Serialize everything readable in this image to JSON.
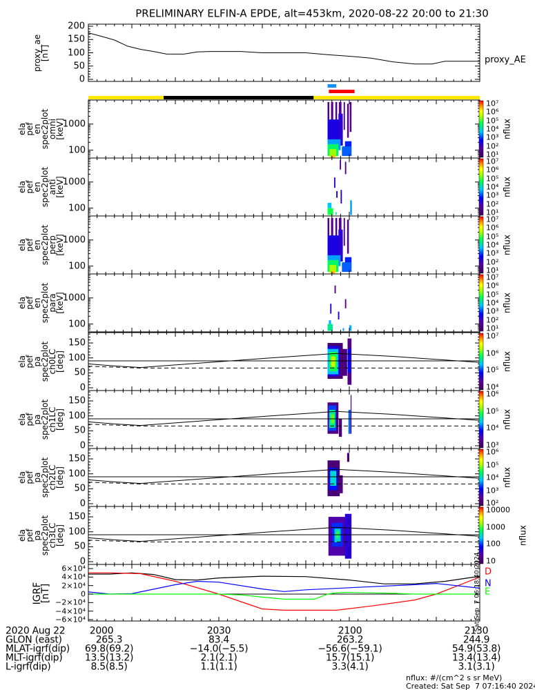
{
  "title": "PRELIMINARY ELFIN-A EPDE, alt=453km, 2020-08-22 20:00 to 21:30",
  "chart_data": {
    "type": "line",
    "time_range_min": [
      0,
      90
    ],
    "time_origin": "2020-08-22 20:00",
    "proxy_ae": {
      "ylabel": "proxy_ae\n[nT]",
      "legend": "proxy_AE",
      "ylim": [
        0,
        200
      ],
      "yticks": [
        "200",
        "150",
        "100",
        "50",
        "0"
      ],
      "ytick_values": [
        200,
        150,
        100,
        50,
        0
      ],
      "t": [
        0,
        3,
        6,
        9,
        12,
        15,
        18,
        22,
        25,
        28,
        35,
        40,
        50,
        55,
        60,
        65,
        70,
        75,
        79,
        82,
        90
      ],
      "values": [
        175,
        162,
        148,
        125,
        113,
        105,
        95,
        95,
        103,
        105,
        105,
        100,
        100,
        93,
        87,
        80,
        66,
        58,
        58,
        68,
        68
      ]
    },
    "indicator_bars": {
      "blue": [
        55.0,
        57.0
      ],
      "red": [
        55.3,
        61.2
      ],
      "sunlight": [
        {
          "t": [
            0,
            17.3
          ],
          "color": "#ffe800"
        },
        {
          "t": [
            17.3,
            51.8
          ],
          "color": "#000000"
        },
        {
          "t": [
            51.8,
            90
          ],
          "color": "#ffe800"
        }
      ]
    },
    "panels": [
      {
        "kind": "energy",
        "ylabel": "ela\npef\nen\nspec2plot\nomni\n[keV]",
        "yticks": [
          {
            "v": 1000,
            "label": "1000"
          },
          {
            "v": 100,
            "label": "100"
          }
        ],
        "cbar": {
          "range": [
            0.8,
            7
          ],
          "label": "nflux",
          "ticks": [
            "10⁷",
            "10⁶",
            "10⁵",
            "10⁴",
            "10³",
            "10²",
            "10¹"
          ]
        },
        "blobs": [
          [
            55,
            55.4,
            300,
            7000,
            1.4
          ],
          [
            55.8,
            56.3,
            200,
            7000,
            1.5
          ],
          [
            56.8,
            57.2,
            500,
            7000,
            1.4
          ],
          [
            57.6,
            58.2,
            300,
            7000,
            1.6
          ],
          [
            58.7,
            59,
            600,
            7000,
            1.4
          ],
          [
            59.5,
            59.9,
            300,
            6000,
            1.5
          ],
          [
            60.1,
            60.5,
            500,
            7000,
            1.4
          ],
          [
            55,
            58.5,
            150,
            1500,
            2.4
          ],
          [
            57.5,
            58.5,
            150,
            2500,
            2.2
          ],
          [
            59,
            60.5,
            60,
            220,
            2.8
          ],
          [
            55,
            58,
            100,
            260,
            3.4
          ],
          [
            58.3,
            60.5,
            60,
            140,
            3.1
          ],
          [
            55,
            57.5,
            60,
            170,
            4.4
          ],
          [
            55.4,
            57,
            55,
            110,
            5.2
          ],
          [
            55.8,
            56.6,
            50,
            65,
            6.2
          ]
        ]
      },
      {
        "kind": "energy",
        "ylabel": "ela\npef\nen\nspec2plot\nanti\n[keV]",
        "yticks": [
          {
            "v": 1000,
            "label": "1000"
          },
          {
            "v": 100,
            "label": "100"
          }
        ],
        "cbar": {
          "range": [
            0.8,
            7
          ],
          "label": "nflux",
          "ticks": [
            "10⁷",
            "10⁶",
            "10⁵",
            "10⁴",
            "10³",
            "10²",
            "10¹"
          ]
        },
        "blobs": [
          [
            56.5,
            56.8,
            600,
            1500,
            2.2
          ],
          [
            58,
            58.3,
            150,
            500,
            2.2
          ],
          [
            59,
            59.3,
            2000,
            6000,
            1.5
          ],
          [
            57,
            57.3,
            250,
            450,
            2.5
          ],
          [
            57.8,
            58.1,
            3000,
            7000,
            1.6
          ],
          [
            55,
            55.9,
            100,
            160,
            3.6
          ],
          [
            55,
            56.3,
            55,
            100,
            4.6
          ],
          [
            60.2,
            60.6,
            55,
            200,
            3.4
          ],
          [
            56.8,
            57.1,
            55,
            70,
            4.2
          ]
        ]
      },
      {
        "kind": "energy",
        "ylabel": "ela\npef\nen\nspec2plot\nperp\n[keV]",
        "yticks": [
          {
            "v": 1000,
            "label": "1000"
          },
          {
            "v": 100,
            "label": "100"
          }
        ],
        "cbar": {
          "range": [
            0.8,
            7
          ],
          "label": "nflux",
          "ticks": [
            "10⁷",
            "10⁶",
            "10⁵",
            "10⁴",
            "10³",
            "10²",
            "10¹"
          ]
        },
        "blobs": [
          [
            55,
            55.4,
            300,
            7000,
            1.4
          ],
          [
            55.8,
            56.3,
            200,
            7000,
            1.5
          ],
          [
            56.8,
            57.2,
            500,
            7000,
            1.4
          ],
          [
            57.6,
            58.2,
            300,
            7000,
            1.6
          ],
          [
            58.7,
            59,
            600,
            7000,
            1.4
          ],
          [
            59.5,
            59.9,
            300,
            6000,
            1.5
          ],
          [
            55,
            58.5,
            150,
            1500,
            2.4
          ],
          [
            57.5,
            58.5,
            150,
            2500,
            2.2
          ],
          [
            59,
            60.5,
            60,
            220,
            2.8
          ],
          [
            55,
            58,
            100,
            260,
            3.4
          ],
          [
            58.3,
            60.5,
            60,
            140,
            3.1
          ],
          [
            55,
            57.5,
            60,
            170,
            4.4
          ],
          [
            55.4,
            57,
            55,
            110,
            5.3
          ],
          [
            55.8,
            56.6,
            50,
            65,
            6.3
          ]
        ]
      },
      {
        "kind": "energy",
        "ylabel": "ela\npef\nen\nspec2plot\npara\n[keV]",
        "yticks": [
          {
            "v": 1000,
            "label": "1000"
          },
          {
            "v": 100,
            "label": "100"
          }
        ],
        "cbar": {
          "range": [
            0.8,
            7
          ],
          "label": "nflux",
          "ticks": [
            "10⁷",
            "10⁶",
            "10⁵",
            "10⁴",
            "10³",
            "10²",
            "10¹"
          ]
        },
        "blobs": [
          [
            55,
            56.2,
            55,
            100,
            4.2
          ],
          [
            55.3,
            55.8,
            100,
            140,
            3.5
          ],
          [
            57.4,
            57.7,
            150,
            300,
            2.4
          ],
          [
            59,
            59.3,
            400,
            900,
            1.8
          ],
          [
            60,
            60.5,
            55,
            90,
            3.5
          ],
          [
            58.5,
            58.8,
            55,
            70,
            3.4
          ],
          [
            56.6,
            56.9,
            1500,
            3000,
            1.5
          ],
          [
            55.6,
            55.9,
            250,
            600,
            2.2
          ]
        ]
      },
      {
        "kind": "pa",
        "ylabel": "ela\npef\npa\nspec2plot\nch0LC\n[deg]",
        "yticks": [
          {
            "v": 150,
            "label": "150"
          },
          {
            "v": 100,
            "label": "100"
          },
          {
            "v": 50,
            "label": "50"
          },
          {
            "v": 0,
            "label": "0"
          }
        ],
        "cbar": {
          "range": [
            3.4,
            7
          ],
          "label": "nflux",
          "ticks": [
            "10⁷",
            "10⁶",
            "10⁵",
            "10⁴"
          ]
        },
        "blobs": [
          [
            55,
            58.5,
            30,
            150,
            3.6
          ],
          [
            57.8,
            59.5,
            40,
            130,
            3.7
          ],
          [
            59.6,
            60.5,
            10,
            165,
            3.8
          ],
          [
            55,
            57.8,
            38,
            140,
            4.3
          ],
          [
            59.6,
            60.3,
            50,
            130,
            4.5
          ],
          [
            55,
            57.5,
            45,
            130,
            5.0
          ],
          [
            55.4,
            57.2,
            55,
            120,
            5.6
          ],
          [
            55.8,
            56.8,
            70,
            105,
            6.1
          ]
        ]
      },
      {
        "kind": "pa",
        "ylabel": "ela\npef\npa\nspec2plot\nch1LC\n[deg]",
        "yticks": [
          {
            "v": 150,
            "label": "150"
          },
          {
            "v": 100,
            "label": "100"
          },
          {
            "v": 50,
            "label": "50"
          },
          {
            "v": 0,
            "label": "0"
          }
        ],
        "cbar": {
          "range": [
            2.6,
            6.6
          ],
          "label": "nflux",
          "ticks": [
            "10⁶",
            "10⁵",
            "10⁴",
            "10³"
          ]
        },
        "blobs": [
          [
            55,
            57.5,
            40,
            145,
            3.0
          ],
          [
            57.6,
            58.3,
            30,
            90,
            2.9
          ],
          [
            60.3,
            60.5,
            40,
            170,
            3.0
          ],
          [
            55.2,
            57,
            50,
            135,
            4.0
          ],
          [
            59.8,
            60.3,
            40,
            120,
            4.1
          ],
          [
            55.4,
            56.8,
            60,
            120,
            4.8
          ],
          [
            55.8,
            56.5,
            75,
            105,
            5.3
          ]
        ]
      },
      {
        "kind": "pa",
        "ylabel": "ela\npef\npa\nspec2plot\nch2LC\n[deg]",
        "yticks": [
          {
            "v": 150,
            "label": "150"
          },
          {
            "v": 100,
            "label": "100"
          },
          {
            "v": 50,
            "label": "50"
          },
          {
            "v": 0,
            "label": "0"
          }
        ],
        "cbar": {
          "range": [
            1.8,
            6.3
          ],
          "label": "nflux",
          "ticks": [
            "10⁶",
            "10⁵",
            "10⁴",
            "10³",
            "10²"
          ]
        },
        "blobs": [
          [
            55,
            57.8,
            25,
            145,
            2.1
          ],
          [
            57.5,
            58.5,
            35,
            95,
            2.2
          ],
          [
            59.5,
            60,
            140,
            170,
            2.1
          ],
          [
            55.3,
            57.3,
            45,
            120,
            3.2
          ],
          [
            55.6,
            57,
            60,
            110,
            4.0
          ]
        ]
      },
      {
        "kind": "pa",
        "ylabel": "ela\npef\npa\nspec2plot\nch3LC\n[deg]",
        "yticks": [
          {
            "v": 150,
            "label": "150"
          },
          {
            "v": 100,
            "label": "100"
          },
          {
            "v": 50,
            "label": "50"
          },
          {
            "v": 0,
            "label": "0"
          }
        ],
        "cbar": {
          "range": [
            1,
            4
          ],
          "label": "nflux",
          "ticks": [
            "10000",
            "1000",
            "100",
            "10"
          ]
        },
        "blobs": [
          [
            55.2,
            59.5,
            20,
            150,
            1.5
          ],
          [
            59,
            60.5,
            10,
            160,
            1.7
          ],
          [
            56,
            58.5,
            50,
            130,
            2.0
          ],
          [
            56.6,
            58,
            65,
            110,
            2.5
          ],
          [
            57,
            57.6,
            80,
            100,
            2.9
          ]
        ]
      }
    ],
    "pa_lines": {
      "loss_cone": {
        "t": [
          0,
          6,
          12,
          25,
          40,
          57,
          70,
          90
        ],
        "values": [
          80,
          73,
          68,
          82,
          98,
          115,
          105,
          85
        ]
      },
      "ninety": 90,
      "anti_loss_cone": {
        "t": [
          0,
          12,
          90
        ],
        "values": [
          72,
          66,
          66
        ]
      }
    },
    "igrf": {
      "ylabel": "IGRF\n[nT]",
      "ylim": [
        -65000,
        65000
      ],
      "yticks": [
        {
          "v": 60000,
          "label": "6×10⁴"
        },
        {
          "v": 40000,
          "label": "4×10⁴"
        },
        {
          "v": 20000,
          "label": "2×10⁴"
        },
        {
          "v": 0,
          "label": "0"
        },
        {
          "v": -20000,
          "label": "−2×10⁴"
        },
        {
          "v": -40000,
          "label": "−4×10⁴"
        },
        {
          "v": -60000,
          "label": "−6×10⁴"
        }
      ],
      "series": [
        {
          "name": "total",
          "color": "#000000",
          "t": [
            0,
            5,
            10,
            15,
            20,
            25,
            30,
            40,
            50,
            60,
            68,
            75,
            82,
            90
          ],
          "values": [
            47000,
            47000,
            50000,
            46000,
            34000,
            33000,
            38000,
            42000,
            41000,
            33000,
            24000,
            24000,
            30000,
            42000
          ]
        },
        {
          "name": "D",
          "color": "#ff0000",
          "t": [
            0,
            5,
            12,
            20,
            30,
            40,
            45,
            57,
            65,
            75,
            80,
            85,
            90
          ],
          "values": [
            50000,
            50000,
            48000,
            30000,
            0,
            -35000,
            -38000,
            -38000,
            -28000,
            -14000,
            0,
            20000,
            40000
          ]
        },
        {
          "name": "N",
          "color": "#0000ff",
          "t": [
            0,
            5,
            10,
            20,
            25,
            30,
            40,
            45,
            50,
            60,
            75,
            80,
            90
          ],
          "values": [
            5000,
            0,
            1000,
            22000,
            30000,
            28000,
            12000,
            6000,
            10000,
            15000,
            22000,
            25000,
            14000
          ]
        },
        {
          "name": "E",
          "color": "#00ff00",
          "t": [
            0,
            30,
            35,
            45,
            52,
            55,
            57,
            60,
            70,
            75,
            90
          ],
          "values": [
            0,
            0,
            -2000,
            -12000,
            -12000,
            0,
            3000,
            4000,
            2000,
            0,
            0
          ]
        }
      ],
      "legend": [
        "D",
        "N",
        "E"
      ]
    }
  },
  "bottom_table": {
    "labels": [
      "2020 Aug 22",
      "GLON (east)",
      "MLAT-igrf(dip)",
      "MLT-igrf(dip)",
      "L-igrf(dip)"
    ],
    "columns": [
      {
        "time": "2000",
        "rows": [
          "265.3",
          "69.8(69.2)",
          "13.5(13.2)",
          "8.5(8.5)"
        ]
      },
      {
        "time": "2030",
        "rows": [
          "83.4",
          "−14.0(−5.5)",
          "2.1(2.1)",
          "1.1(1.1)"
        ]
      },
      {
        "time": "2100",
        "rows": [
          "263.2",
          "−56.6(−59.1)",
          "15.7(15.1)",
          "3.3(4.1)"
        ]
      },
      {
        "time": "2130",
        "rows": [
          "244.9",
          "54.9(53.8)",
          "13.4(13.4)",
          "3.1(3.1)"
        ]
      }
    ]
  },
  "footer": {
    "units": "nflux: #/(cm^2 s sr MeV)",
    "created": "Created: Sat Sep  7 07:16:40 2024",
    "side_stamp": "Sat Sep  7 06:18:40 2024"
  }
}
